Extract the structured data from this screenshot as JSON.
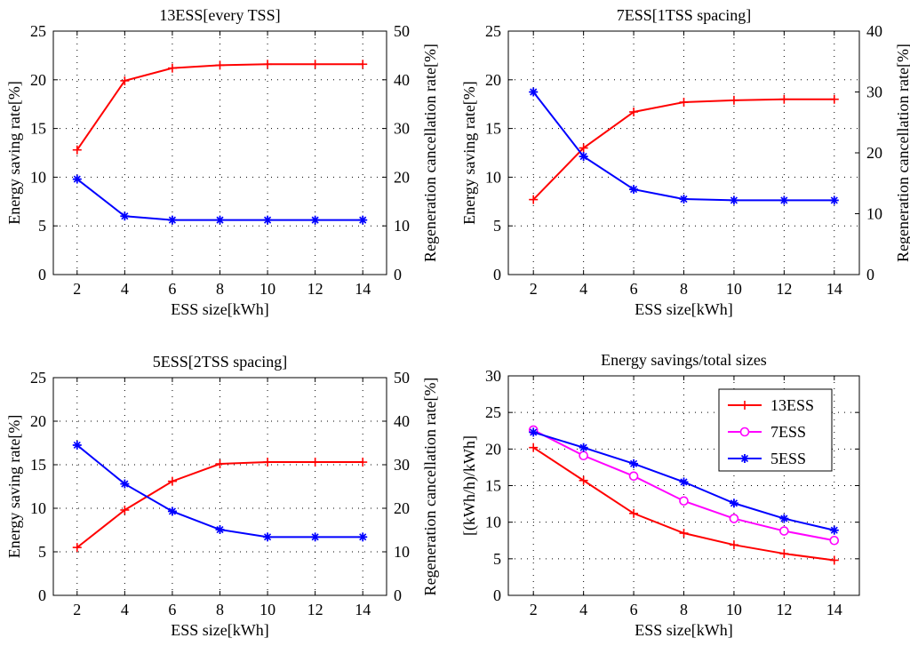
{
  "colors": {
    "energy_saving": "#ff0000",
    "regeneration": "#0000ff",
    "magenta": "#ff00ff",
    "frame": "#000000"
  },
  "chart_data": [
    {
      "type": "line",
      "title": "13ESS[every TSS]",
      "xlabel": "ESS size[kWh]",
      "ylabel": "Energy saving rate[%]",
      "y2label": "Regeneration cancellation rate[%]",
      "x": [
        2,
        4,
        6,
        8,
        10,
        12,
        14
      ],
      "xlim": [
        1,
        15
      ],
      "ylim": [
        0,
        25
      ],
      "y2lim": [
        0,
        50
      ],
      "yticks": [
        0,
        5,
        10,
        15,
        20,
        25
      ],
      "y2ticks": [
        0,
        10,
        20,
        30,
        40,
        50
      ],
      "series": [
        {
          "name": "Energy saving rate",
          "axis": "left",
          "color": "#ff0000",
          "marker": "plus",
          "values": [
            12.8,
            19.9,
            21.2,
            21.5,
            21.6,
            21.6,
            21.6
          ]
        },
        {
          "name": "Regeneration cancellation rate",
          "axis": "right",
          "color": "#0000ff",
          "marker": "star",
          "values": [
            19.6,
            12.0,
            11.2,
            11.2,
            11.2,
            11.2,
            11.2
          ]
        }
      ]
    },
    {
      "type": "line",
      "title": "7ESS[1TSS spacing]",
      "xlabel": "ESS size[kWh]",
      "ylabel": "Energy saving rate[%]",
      "y2label": "Regeneration cancellation rate[%]",
      "x": [
        2,
        4,
        6,
        8,
        10,
        12,
        14
      ],
      "xlim": [
        1,
        15
      ],
      "ylim": [
        0,
        25
      ],
      "y2lim": [
        0,
        40
      ],
      "yticks": [
        0,
        5,
        10,
        15,
        20,
        25
      ],
      "y2ticks": [
        0,
        10,
        20,
        30,
        40
      ],
      "series": [
        {
          "name": "Energy saving rate",
          "axis": "left",
          "color": "#ff0000",
          "marker": "plus",
          "values": [
            7.7,
            13.0,
            16.7,
            17.7,
            17.9,
            18.0,
            18.0
          ]
        },
        {
          "name": "Regeneration cancellation rate",
          "axis": "right",
          "color": "#0000ff",
          "marker": "star",
          "values": [
            30.0,
            19.4,
            14.0,
            12.4,
            12.2,
            12.2,
            12.2
          ]
        }
      ]
    },
    {
      "type": "line",
      "title": "5ESS[2TSS spacing]",
      "xlabel": "ESS size[kWh]",
      "ylabel": "Energy saving rate[%]",
      "y2label": "Regeneration cancellation rate[%]",
      "x": [
        2,
        4,
        6,
        8,
        10,
        12,
        14
      ],
      "xlim": [
        1,
        15
      ],
      "ylim": [
        0,
        25
      ],
      "y2lim": [
        0,
        50
      ],
      "yticks": [
        0,
        5,
        10,
        15,
        20,
        25
      ],
      "y2ticks": [
        0,
        10,
        20,
        30,
        40,
        50
      ],
      "series": [
        {
          "name": "Energy saving rate",
          "axis": "left",
          "color": "#ff0000",
          "marker": "plus",
          "values": [
            5.5,
            9.8,
            13.1,
            15.1,
            15.3,
            15.3,
            15.3
          ]
        },
        {
          "name": "Regeneration cancellation rate",
          "axis": "right",
          "color": "#0000ff",
          "marker": "star",
          "values": [
            34.5,
            25.6,
            19.3,
            15.1,
            13.4,
            13.4,
            13.4
          ]
        }
      ]
    },
    {
      "type": "line",
      "title": "Energy savings/total sizes",
      "xlabel": "ESS size[kWh]",
      "ylabel": "[(kWh/h)/kWh]",
      "x": [
        2,
        4,
        6,
        8,
        10,
        12,
        14
      ],
      "xlim": [
        1,
        15
      ],
      "ylim": [
        0,
        30
      ],
      "yticks": [
        0,
        5,
        10,
        15,
        20,
        25,
        30
      ],
      "legend": "top-right",
      "series": [
        {
          "name": "13ESS",
          "color": "#ff0000",
          "marker": "plus",
          "values": [
            20.2,
            15.7,
            11.2,
            8.5,
            6.9,
            5.7,
            4.8
          ]
        },
        {
          "name": "7ESS",
          "color": "#ff00ff",
          "marker": "circle",
          "values": [
            22.6,
            19.1,
            16.3,
            12.9,
            10.5,
            8.8,
            7.5
          ]
        },
        {
          "name": "5ESS",
          "color": "#0000ff",
          "marker": "star",
          "values": [
            22.3,
            20.2,
            18.0,
            15.5,
            12.6,
            10.5,
            8.9
          ]
        }
      ]
    }
  ]
}
